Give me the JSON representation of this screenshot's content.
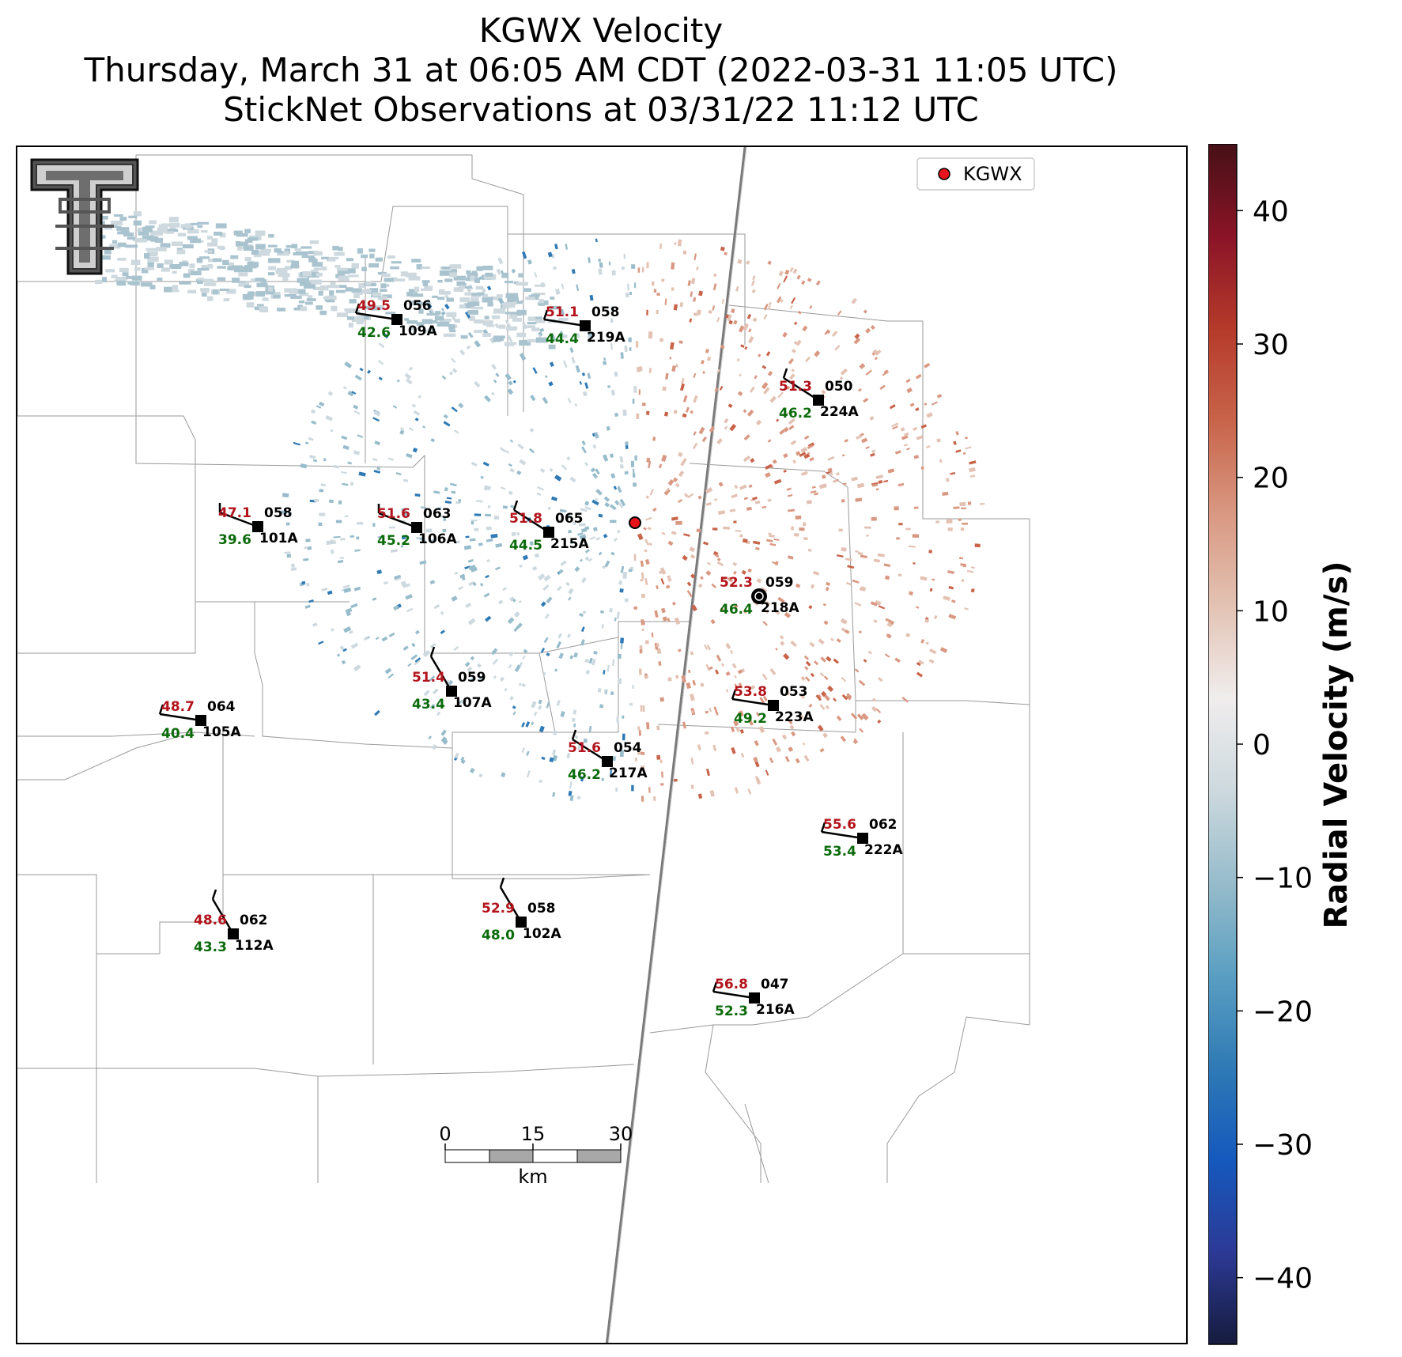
{
  "title": {
    "line1": "KGWX Velocity",
    "line2": "Thursday, March 31 at 06:05 AM CDT (2022-03-31 11:05 UTC)",
    "line3": "StickNet Observations at 03/31/22 11:12 UTC"
  },
  "legend": {
    "label": "KGWX",
    "marker_color": "#e8141b"
  },
  "colorbar": {
    "label": "Radial Velocity (m/s)",
    "ticks": [
      "40",
      "30",
      "20",
      "10",
      "0",
      "−10",
      "−20",
      "−30",
      "−40"
    ],
    "range": [
      -45,
      45
    ],
    "colors": [
      "#161b3d",
      "#2c3a96",
      "#1559bd",
      "#2f7ab5",
      "#5a9fc2",
      "#97bccb",
      "#cdd9de",
      "#f0eded",
      "#e3c2b3",
      "#d99882",
      "#c8644a",
      "#b53a2a",
      "#8a1427",
      "#461016"
    ]
  },
  "scalebar": {
    "ticks": [
      "0",
      "15",
      "30"
    ],
    "unit": "km"
  },
  "logo": {
    "name": "Texas Tech Double T",
    "text": "T"
  },
  "stations": [
    {
      "id": "109A",
      "temp": "49.5",
      "dew": "42.6",
      "code": "056"
    },
    {
      "id": "219A",
      "temp": "51.1",
      "dew": "44.4",
      "code": "058"
    },
    {
      "id": "224A",
      "temp": "51.3",
      "dew": "46.2",
      "code": "050"
    },
    {
      "id": "101A",
      "temp": "47.1",
      "dew": "39.6",
      "code": "058"
    },
    {
      "id": "106A",
      "temp": "51.6",
      "dew": "45.2",
      "code": "063"
    },
    {
      "id": "215A",
      "temp": "51.8",
      "dew": "44.5",
      "code": "065"
    },
    {
      "id": "218A",
      "temp": "52.3",
      "dew": "46.4",
      "code": "059"
    },
    {
      "id": "107A",
      "temp": "51.4",
      "dew": "43.4",
      "code": "059"
    },
    {
      "id": "105A",
      "temp": "48.7",
      "dew": "40.4",
      "code": "064"
    },
    {
      "id": "223A",
      "temp": "53.8",
      "dew": "49.2",
      "code": "053"
    },
    {
      "id": "217A",
      "temp": "51.6",
      "dew": "46.2",
      "code": "054"
    },
    {
      "id": "222A",
      "temp": "55.6",
      "dew": "53.4",
      "code": "062"
    },
    {
      "id": "112A",
      "temp": "48.6",
      "dew": "43.3",
      "code": "062"
    },
    {
      "id": "102A",
      "temp": "52.9",
      "dew": "48.0",
      "code": "058"
    },
    {
      "id": "216A",
      "temp": "56.8",
      "dew": "52.3",
      "code": "047"
    }
  ]
}
